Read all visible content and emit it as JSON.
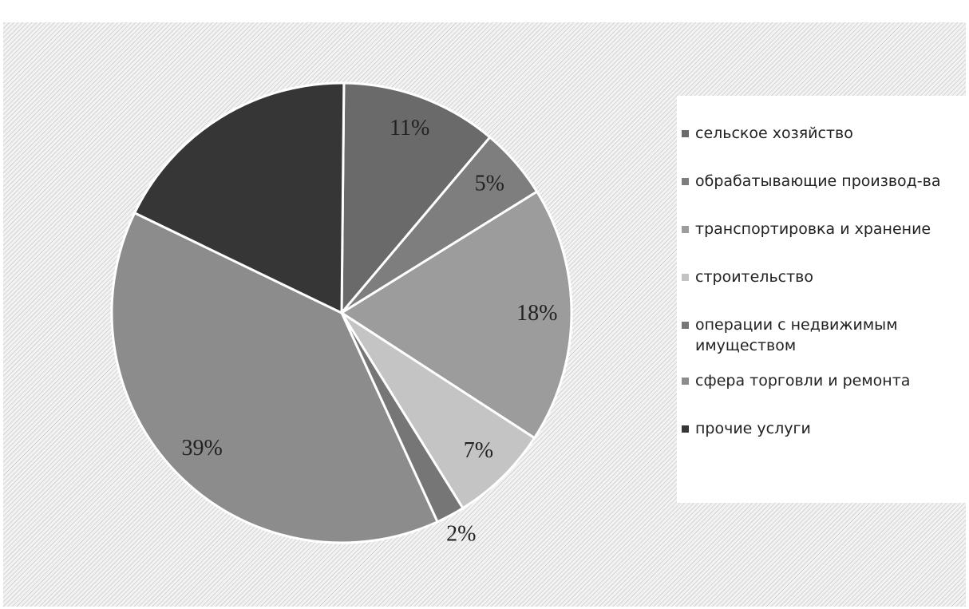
{
  "chart_data": {
    "type": "pie",
    "categories": [
      "сельское хозяйство",
      "обрабатывающие производ-ва",
      "транспортировка и хранение",
      "строительство",
      "операции с недвижимым имуществом",
      "сфера торговли и ремонта",
      "прочие услуги"
    ],
    "values": [
      11,
      5,
      18,
      7,
      2,
      39,
      18
    ],
    "value_labels": [
      "11%",
      "5%",
      "18%",
      "7%",
      "2%",
      "39%",
      null
    ],
    "colors": [
      "#6a6a6a",
      "#7e7e7e",
      "#9c9c9c",
      "#c4c4c4",
      "#767676",
      "#8c8c8c",
      "#363636"
    ]
  }
}
